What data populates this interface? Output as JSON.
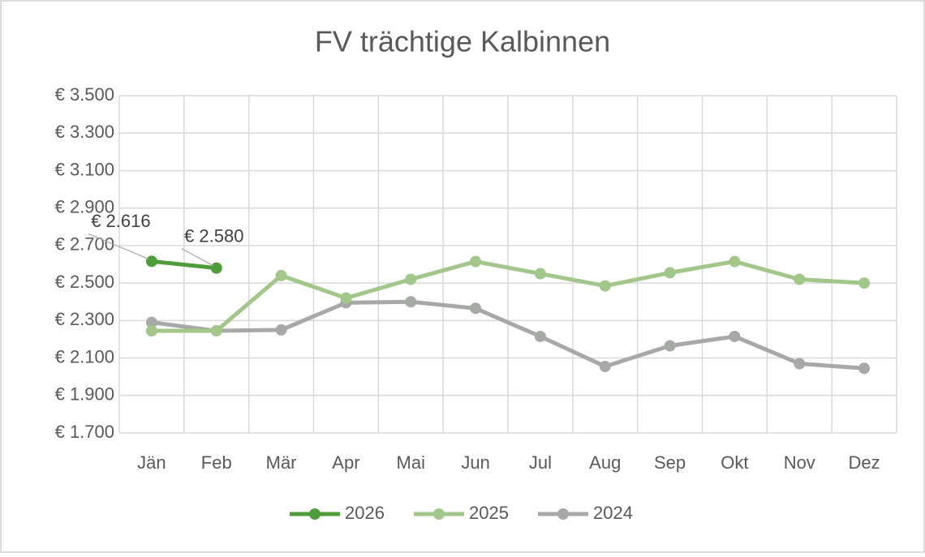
{
  "chart_data": {
    "type": "line",
    "title": "FV trächtige Kalbinnen",
    "categories": [
      "Jän",
      "Feb",
      "Mär",
      "Apr",
      "Mai",
      "Jun",
      "Jul",
      "Aug",
      "Sep",
      "Okt",
      "Nov",
      "Dez"
    ],
    "series": [
      {
        "name": "2026",
        "color": "#4f9d3a",
        "values": [
          2616,
          2580,
          null,
          null,
          null,
          null,
          null,
          null,
          null,
          null,
          null,
          null
        ],
        "value_labels": [
          "€ 2.616",
          "€ 2.580",
          null,
          null,
          null,
          null,
          null,
          null,
          null,
          null,
          null,
          null
        ]
      },
      {
        "name": "2025",
        "color": "#a3c68a",
        "values": [
          2245,
          2245,
          2540,
          2420,
          2520,
          2615,
          2550,
          2485,
          2555,
          2615,
          2520,
          2500
        ]
      },
      {
        "name": "2024",
        "color": "#a6a9a6",
        "values": [
          2290,
          2245,
          2250,
          2395,
          2400,
          2365,
          2215,
          2055,
          2165,
          2215,
          2070,
          2045
        ]
      }
    ],
    "ylim": [
      1700,
      3500
    ],
    "yticks": [
      {
        "value": 1700,
        "label": "€ 1.700"
      },
      {
        "value": 1900,
        "label": "€ 1.900"
      },
      {
        "value": 2100,
        "label": "€ 2.100"
      },
      {
        "value": 2300,
        "label": "€ 2.300"
      },
      {
        "value": 2500,
        "label": "€ 2.500"
      },
      {
        "value": 2700,
        "label": "€ 2.700"
      },
      {
        "value": 2900,
        "label": "€ 2.900"
      },
      {
        "value": 3100,
        "label": "€ 3.100"
      },
      {
        "value": 3300,
        "label": "€ 3.300"
      },
      {
        "value": 3500,
        "label": "€ 3.500"
      }
    ],
    "grid": true,
    "legend": "bottom"
  }
}
